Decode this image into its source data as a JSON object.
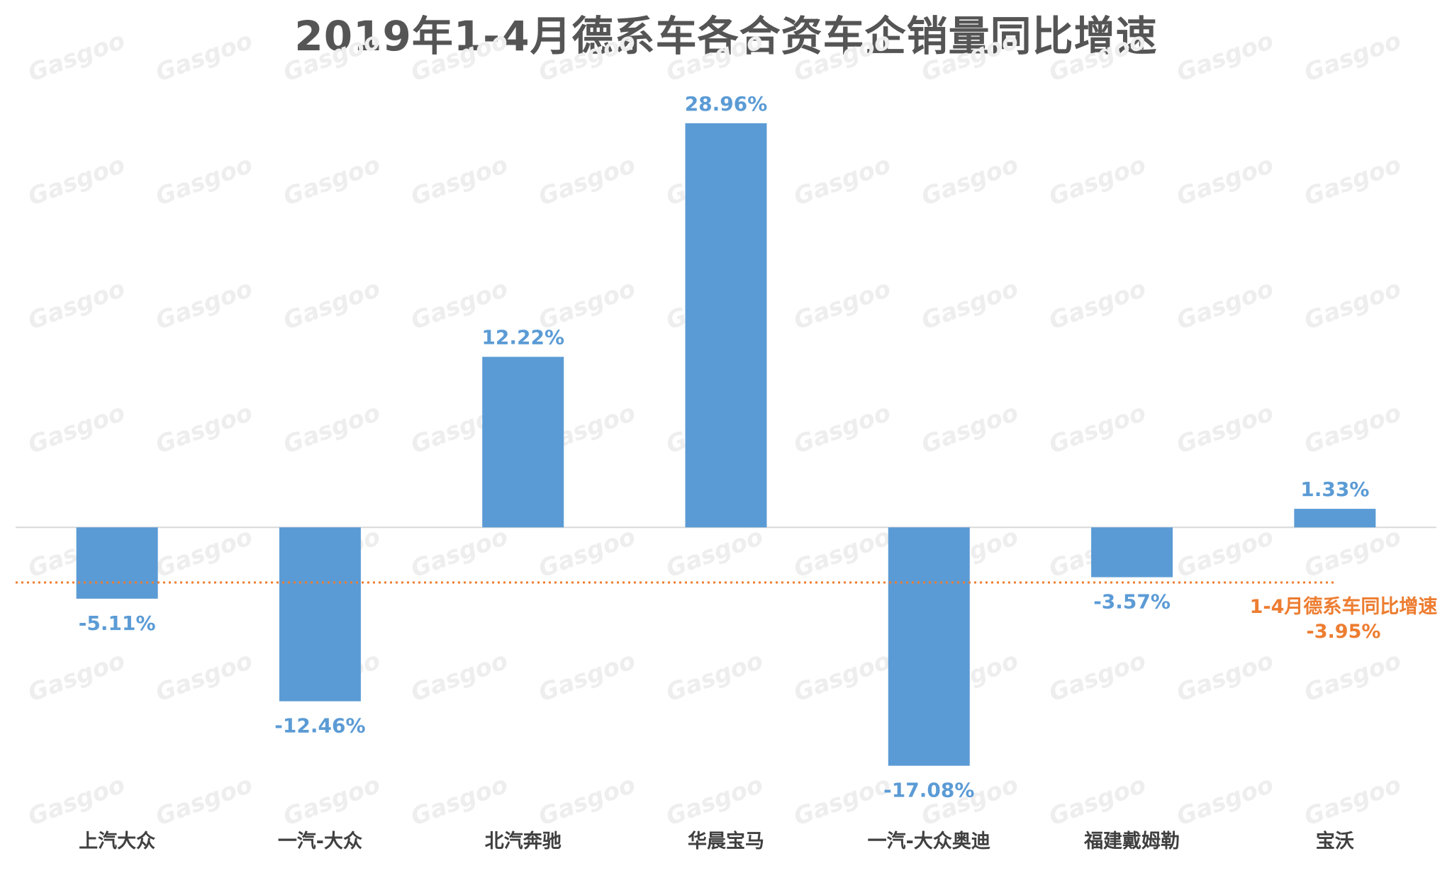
{
  "chart_data": {
    "type": "bar",
    "title": "2019年1-4月德系车各合资车企销量同比增速",
    "categories": [
      "上汽大众",
      "一汽-大众",
      "北汽奔驰",
      "华晨宝马",
      "一汽-大众奥迪",
      "福建戴姆勒",
      "宝沃"
    ],
    "values": [
      -5.11,
      -12.46,
      12.22,
      28.96,
      -17.08,
      -3.57,
      1.33
    ],
    "data_labels": [
      "-5.11%",
      "-12.46%",
      "12.22%",
      "28.96%",
      "-17.08%",
      "-3.57%",
      "1.33%"
    ],
    "ylim": [
      -20.5,
      32
    ],
    "grid": false,
    "bar_color": "#5b9bd5",
    "reference_line": {
      "value": -3.95,
      "label": "1-4月德系车同比增速",
      "value_label": "-3.95%",
      "color": "#ed7d31",
      "style": "dotted"
    }
  },
  "watermark": {
    "text": "Gasgoo",
    "color": "#eeeeee"
  }
}
